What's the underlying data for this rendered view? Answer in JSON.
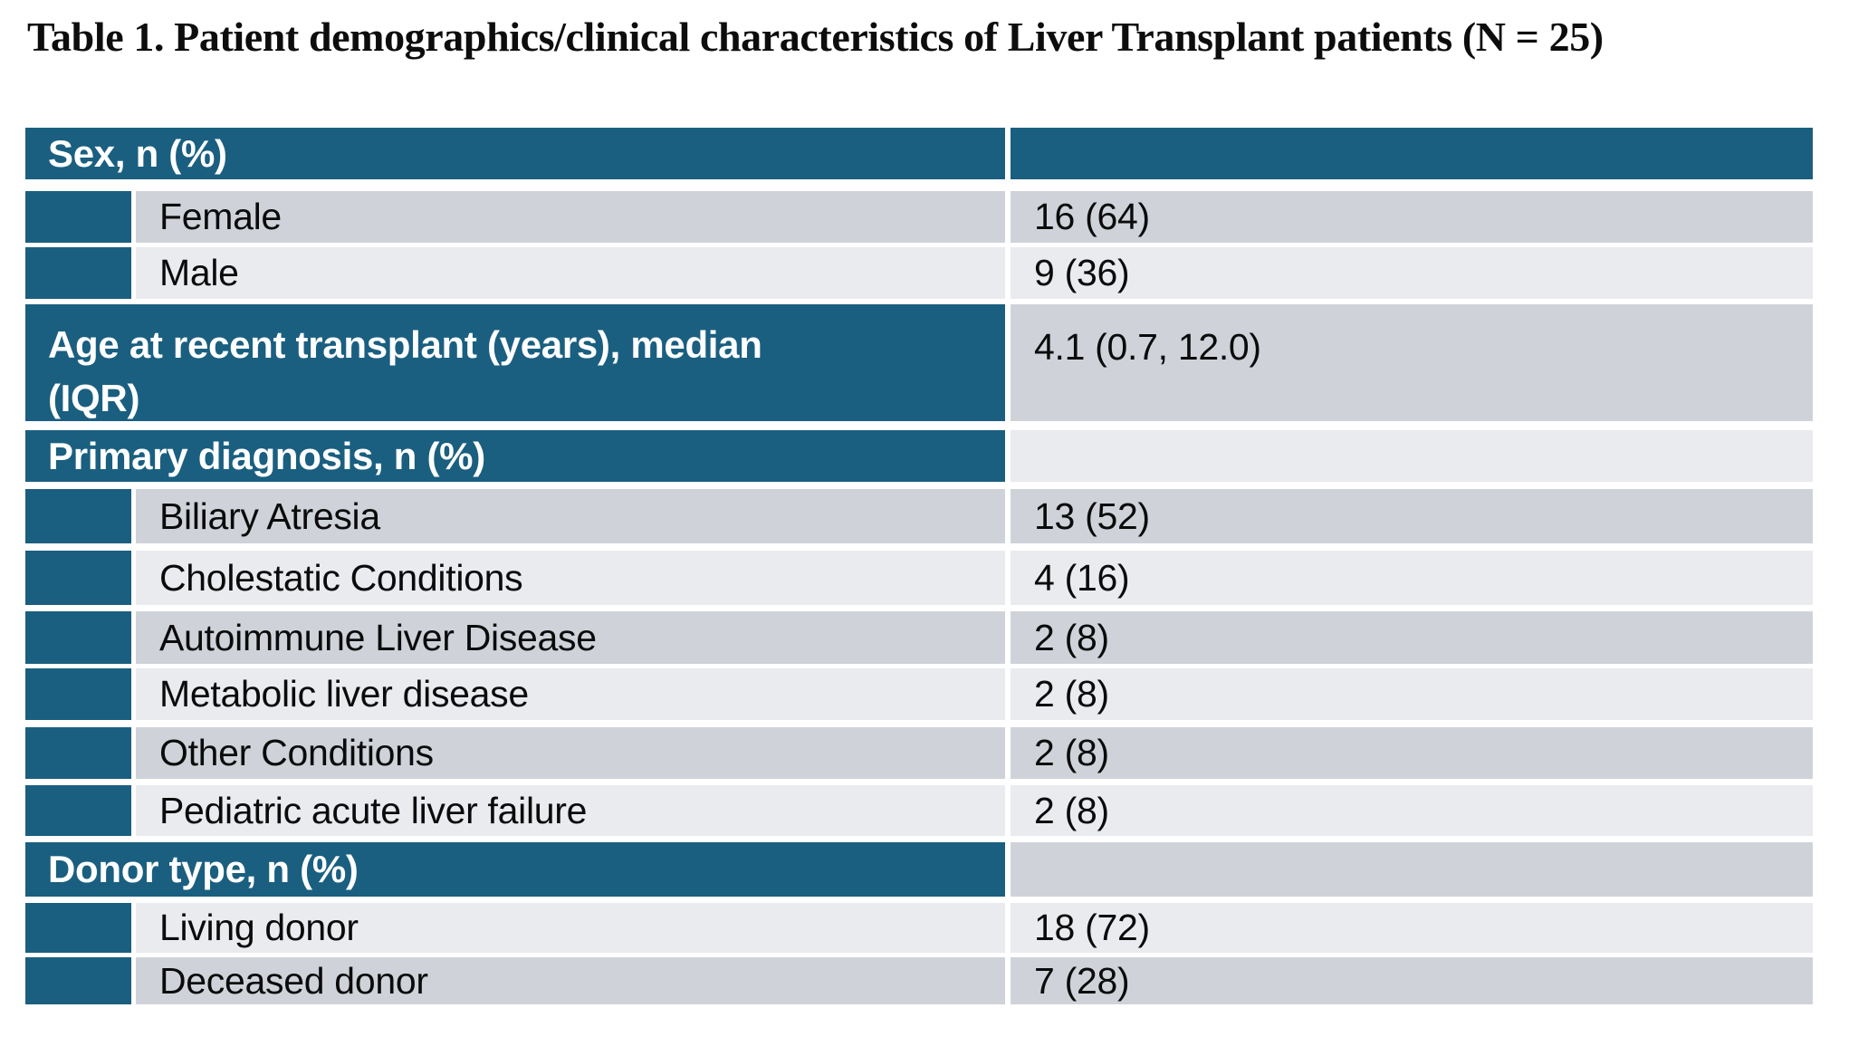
{
  "title": "Table 1. Patient demographics/clinical characteristics of Liver Transplant patients (N = 25)",
  "colors": {
    "header_teal": "#1A5F80",
    "band_dark": "#CFD3D9",
    "band_light": "#E9EBEE",
    "header_text": "#FFFFFF",
    "body_text": "#0B0B0C",
    "page_background": "#FFFFFF"
  },
  "table": {
    "rows": [
      {
        "type": "section",
        "label": "Sex, n (%)",
        "value": "",
        "value_band": "teal"
      },
      {
        "type": "item",
        "label": "Female",
        "value": "16 (64)",
        "band": "dark"
      },
      {
        "type": "item",
        "label": "Male",
        "value": "9 (36)",
        "band": "light"
      },
      {
        "type": "measure",
        "label": "Age at recent transplant (years), median (IQR)",
        "value": "4.1 (0.7, 12.0)",
        "band": "dark"
      },
      {
        "type": "section",
        "label": "Primary diagnosis, n (%)",
        "value": "",
        "value_band": "light"
      },
      {
        "type": "item",
        "label": "Biliary Atresia",
        "value": "13 (52)",
        "band": "dark"
      },
      {
        "type": "item",
        "label": "Cholestatic Conditions",
        "value": "4 (16)",
        "band": "light"
      },
      {
        "type": "item",
        "label": "Autoimmune Liver Disease",
        "value": "2 (8)",
        "band": "dark"
      },
      {
        "type": "item",
        "label": "Metabolic liver disease",
        "value": "2 (8)",
        "band": "light"
      },
      {
        "type": "item",
        "label": "Other Conditions",
        "value": "2 (8)",
        "band": "dark"
      },
      {
        "type": "item",
        "label": "Pediatric acute liver failure",
        "value": "2 (8)",
        "band": "light"
      },
      {
        "type": "section",
        "label": "Donor type, n (%)",
        "value": "",
        "value_band": "dark"
      },
      {
        "type": "item",
        "label": "Living donor",
        "value": "18 (72)",
        "band": "light"
      },
      {
        "type": "item",
        "label": "Deceased donor",
        "value": "7 (28)",
        "band": "dark"
      }
    ]
  }
}
